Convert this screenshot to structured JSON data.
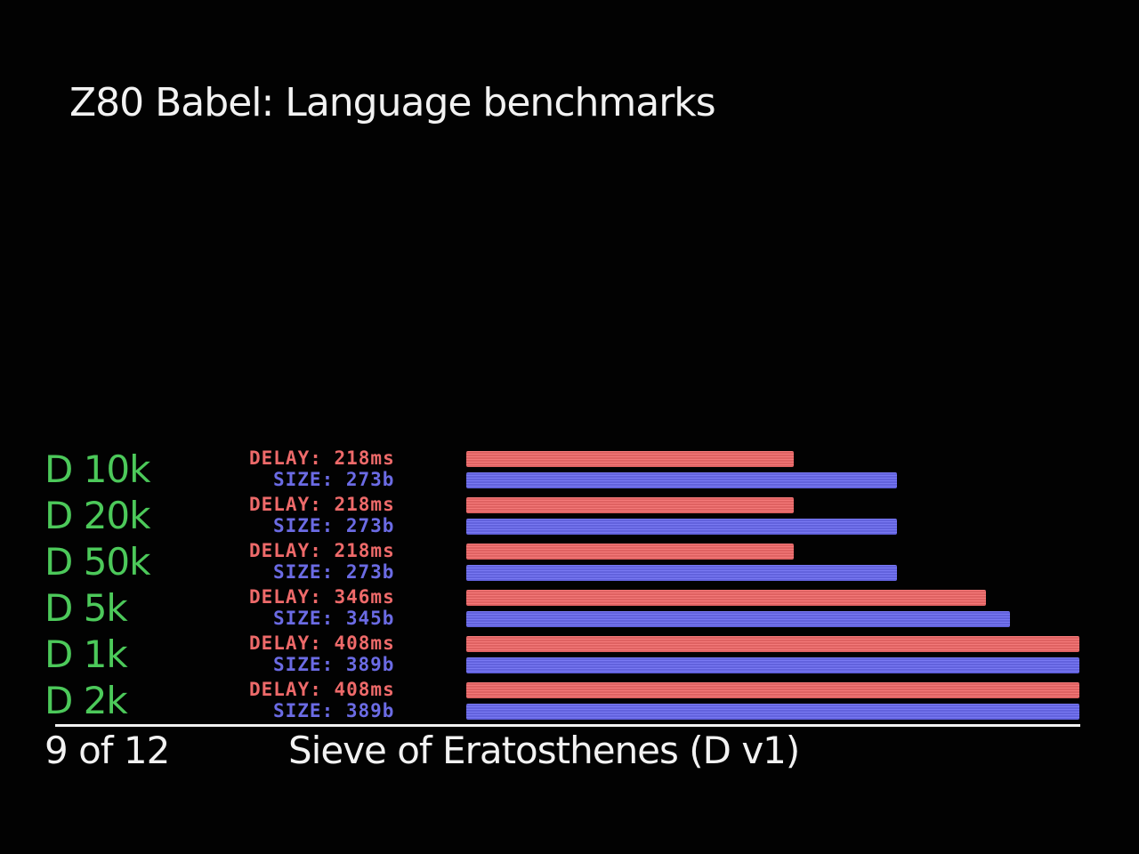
{
  "title": "Z80 Babel: Language benchmarks",
  "colors": {
    "background": "#020202",
    "label_green": "#4cc95a",
    "delay_red": "#f26a6a",
    "size_blue": "#6a6af0",
    "text_white": "#f2f2f2"
  },
  "footer": {
    "page_indicator": "9 of 12",
    "benchmark_name": "Sieve of Eratosthenes (D v1)"
  },
  "chart_data": {
    "type": "bar",
    "orientation": "horizontal",
    "title": "Z80 Babel: Language benchmarks",
    "subtitle": "Sieve of Eratosthenes (D v1)",
    "categories": [
      "D 10k",
      "D 20k",
      "D 50k",
      "D 5k",
      "D 1k",
      "D 2k"
    ],
    "series": [
      {
        "name": "DELAY",
        "unit": "ms",
        "values": [
          218,
          218,
          218,
          346,
          408,
          408
        ],
        "labels": [
          "DELAY: 218ms",
          "DELAY: 218ms",
          "DELAY: 218ms",
          "DELAY: 346ms",
          "DELAY: 408ms",
          "DELAY: 408ms"
        ]
      },
      {
        "name": "SIZE",
        "unit": "b",
        "values": [
          273,
          273,
          273,
          345,
          389,
          389
        ],
        "labels": [
          "SIZE: 273b",
          "SIZE: 273b",
          "SIZE: 273b",
          "SIZE: 345b",
          "SIZE: 389b",
          "SIZE: 389b"
        ]
      }
    ],
    "grid": false,
    "legend": "none"
  }
}
